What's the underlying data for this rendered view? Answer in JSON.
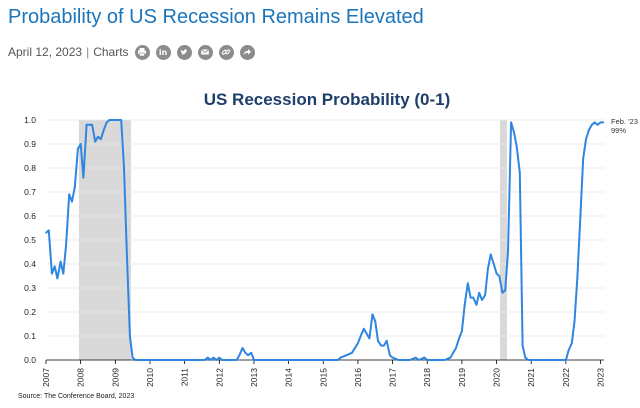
{
  "article": {
    "headline": "Probability of US Recession Remains Elevated",
    "date": "April 12, 2023",
    "separator": "|",
    "category": "Charts",
    "share_icons": [
      "print-icon",
      "linkedin-icon",
      "twitter-icon",
      "email-icon",
      "link-icon",
      "share-arrow-icon"
    ],
    "source": "Source: The Conference Board, 2023"
  },
  "chart_data": {
    "type": "line",
    "title": "US Recession Probability (0-1)",
    "xlabel": "",
    "ylabel": "",
    "xlim": [
      2007.0,
      2023.1
    ],
    "ylim": [
      0,
      1.0
    ],
    "y_ticks": [
      0.0,
      0.1,
      0.2,
      0.3,
      0.4,
      0.5,
      0.6,
      0.7,
      0.8,
      0.9,
      1.0
    ],
    "y_tick_labels": [
      "0.0",
      "0.1",
      "0.2",
      "0.3",
      "0.4",
      "0.5",
      "0.6",
      "0.7",
      "0.8",
      "0.9",
      "1.0"
    ],
    "x_ticks": [
      2007,
      2008,
      2009,
      2010,
      2011,
      2012,
      2013,
      2014,
      2015,
      2016,
      2017,
      2018,
      2019,
      2020,
      2021,
      2022,
      2023
    ],
    "x_tick_labels": [
      "2007",
      "2008",
      "2009",
      "2010",
      "2011",
      "2012",
      "2013",
      "2014",
      "2015",
      "2016",
      "2017",
      "2018",
      "2019",
      "2020",
      "2021",
      "2022",
      "2023"
    ],
    "grid": "horizontal",
    "line_color": "#2f86e0",
    "recession_shading_color": "#d9d9d9",
    "recession_periods": [
      [
        2007.95,
        2009.45
      ],
      [
        2020.1,
        2020.3
      ]
    ],
    "end_annotation": [
      "Feb. '23",
      "99%"
    ],
    "series": [
      {
        "points": [
          [
            2007.0,
            0.53
          ],
          [
            2007.08,
            0.54
          ],
          [
            2007.17,
            0.36
          ],
          [
            2007.25,
            0.39
          ],
          [
            2007.33,
            0.34
          ],
          [
            2007.42,
            0.41
          ],
          [
            2007.5,
            0.36
          ],
          [
            2007.58,
            0.48
          ],
          [
            2007.67,
            0.69
          ],
          [
            2007.75,
            0.66
          ],
          [
            2007.83,
            0.72
          ],
          [
            2007.92,
            0.88
          ],
          [
            2008.0,
            0.9
          ],
          [
            2008.08,
            0.76
          ],
          [
            2008.17,
            0.98
          ],
          [
            2008.25,
            0.98
          ],
          [
            2008.33,
            0.98
          ],
          [
            2008.42,
            0.91
          ],
          [
            2008.5,
            0.93
          ],
          [
            2008.58,
            0.92
          ],
          [
            2008.67,
            0.96
          ],
          [
            2008.75,
            0.99
          ],
          [
            2008.83,
            1.0
          ],
          [
            2008.92,
            1.0
          ],
          [
            2009.0,
            1.0
          ],
          [
            2009.08,
            1.0
          ],
          [
            2009.17,
            1.0
          ],
          [
            2009.25,
            0.8
          ],
          [
            2009.33,
            0.45
          ],
          [
            2009.42,
            0.1
          ],
          [
            2009.5,
            0.01
          ],
          [
            2009.58,
            0.0
          ],
          [
            2010.0,
            0.0
          ],
          [
            2011.0,
            0.0
          ],
          [
            2011.58,
            0.0
          ],
          [
            2011.67,
            0.01
          ],
          [
            2011.75,
            0.0
          ],
          [
            2011.83,
            0.01
          ],
          [
            2011.92,
            0.0
          ],
          [
            2012.0,
            0.01
          ],
          [
            2012.08,
            0.0
          ],
          [
            2012.17,
            0.0
          ],
          [
            2012.5,
            0.0
          ],
          [
            2012.58,
            0.02
          ],
          [
            2012.67,
            0.05
          ],
          [
            2012.75,
            0.03
          ],
          [
            2012.83,
            0.02
          ],
          [
            2012.92,
            0.03
          ],
          [
            2013.0,
            0.0
          ],
          [
            2014.0,
            0.0
          ],
          [
            2015.0,
            0.0
          ],
          [
            2015.25,
            0.0
          ],
          [
            2015.42,
            0.0
          ],
          [
            2015.5,
            0.01
          ],
          [
            2015.67,
            0.02
          ],
          [
            2015.83,
            0.03
          ],
          [
            2016.0,
            0.07
          ],
          [
            2016.08,
            0.1
          ],
          [
            2016.17,
            0.13
          ],
          [
            2016.25,
            0.11
          ],
          [
            2016.33,
            0.09
          ],
          [
            2016.42,
            0.19
          ],
          [
            2016.5,
            0.16
          ],
          [
            2016.58,
            0.08
          ],
          [
            2016.67,
            0.06
          ],
          [
            2016.75,
            0.06
          ],
          [
            2016.83,
            0.08
          ],
          [
            2016.92,
            0.02
          ],
          [
            2017.0,
            0.01
          ],
          [
            2017.17,
            0.0
          ],
          [
            2017.5,
            0.0
          ],
          [
            2017.67,
            0.01
          ],
          [
            2017.75,
            0.0
          ],
          [
            2017.92,
            0.01
          ],
          [
            2018.0,
            0.0
          ],
          [
            2018.5,
            0.0
          ],
          [
            2018.67,
            0.01
          ],
          [
            2018.75,
            0.03
          ],
          [
            2018.83,
            0.05
          ],
          [
            2018.92,
            0.09
          ],
          [
            2019.0,
            0.12
          ],
          [
            2019.08,
            0.23
          ],
          [
            2019.17,
            0.32
          ],
          [
            2019.25,
            0.26
          ],
          [
            2019.33,
            0.26
          ],
          [
            2019.42,
            0.23
          ],
          [
            2019.5,
            0.28
          ],
          [
            2019.58,
            0.25
          ],
          [
            2019.67,
            0.27
          ],
          [
            2019.75,
            0.38
          ],
          [
            2019.83,
            0.44
          ],
          [
            2019.92,
            0.4
          ],
          [
            2020.0,
            0.36
          ],
          [
            2020.08,
            0.35
          ],
          [
            2020.17,
            0.28
          ],
          [
            2020.25,
            0.29
          ],
          [
            2020.33,
            0.45
          ],
          [
            2020.42,
            0.99
          ],
          [
            2020.5,
            0.95
          ],
          [
            2020.58,
            0.89
          ],
          [
            2020.67,
            0.78
          ],
          [
            2020.75,
            0.06
          ],
          [
            2020.83,
            0.01
          ],
          [
            2020.92,
            0.0
          ],
          [
            2021.0,
            0.0
          ],
          [
            2021.5,
            0.0
          ],
          [
            2022.0,
            0.0
          ],
          [
            2022.08,
            0.04
          ],
          [
            2022.17,
            0.07
          ],
          [
            2022.25,
            0.16
          ],
          [
            2022.33,
            0.34
          ],
          [
            2022.42,
            0.6
          ],
          [
            2022.5,
            0.84
          ],
          [
            2022.58,
            0.92
          ],
          [
            2022.67,
            0.96
          ],
          [
            2022.75,
            0.98
          ],
          [
            2022.83,
            0.99
          ],
          [
            2022.92,
            0.98
          ],
          [
            2023.0,
            0.99
          ],
          [
            2023.08,
            0.99
          ]
        ]
      }
    ]
  }
}
